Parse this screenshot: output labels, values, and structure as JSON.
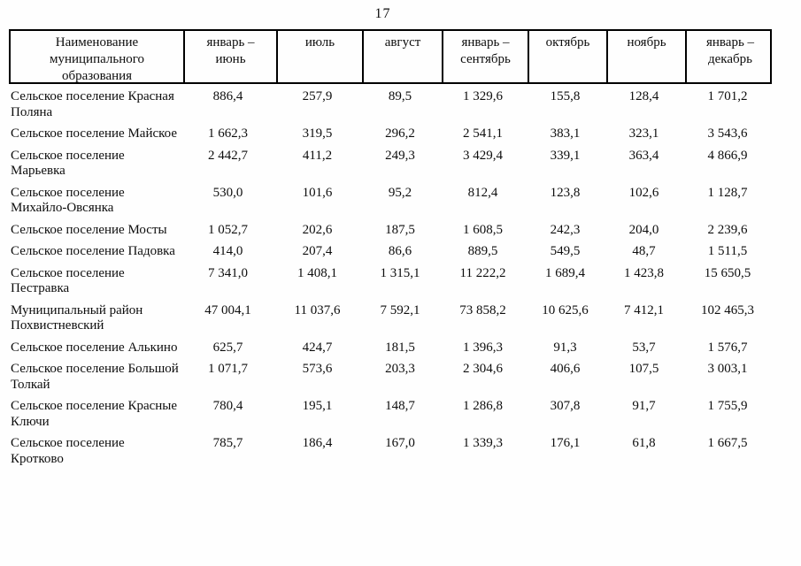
{
  "page": {
    "number": "17"
  },
  "table": {
    "header": [
      "Наименование муниципального образования",
      "январь – июнь",
      "июль",
      "август",
      "январь – сентябрь",
      "октябрь",
      "ноябрь",
      "январь – декабрь"
    ],
    "rows": [
      {
        "name": "Сельское поселение Красная Поляна",
        "values": [
          "886,4",
          "257,9",
          "89,5",
          "1 329,6",
          "155,8",
          "128,4",
          "1 701,2"
        ]
      },
      {
        "name": "Сельское поселение Майское",
        "values": [
          "1 662,3",
          "319,5",
          "296,2",
          "2 541,1",
          "383,1",
          "323,1",
          "3 543,6"
        ]
      },
      {
        "name": "Сельское поселение Марьевка",
        "values": [
          "2 442,7",
          "411,2",
          "249,3",
          "3 429,4",
          "339,1",
          "363,4",
          "4 866,9"
        ]
      },
      {
        "name": "Сельское поселение Михайло-Овсянка",
        "values": [
          "530,0",
          "101,6",
          "95,2",
          "812,4",
          "123,8",
          "102,6",
          "1 128,7"
        ]
      },
      {
        "name": "Сельское поселение Мосты",
        "values": [
          "1 052,7",
          "202,6",
          "187,5",
          "1 608,5",
          "242,3",
          "204,0",
          "2 239,6"
        ]
      },
      {
        "name": "Сельское поселение Падовка",
        "values": [
          "414,0",
          "207,4",
          "86,6",
          "889,5",
          "549,5",
          "48,7",
          "1 511,5"
        ]
      },
      {
        "name": "Сельское поселение Пестравка",
        "values": [
          "7 341,0",
          "1 408,1",
          "1 315,1",
          "11 222,2",
          "1 689,4",
          "1 423,8",
          "15 650,5"
        ]
      },
      {
        "name": "Муниципальный район Похвистневский",
        "values": [
          "47 004,1",
          "11 037,6",
          "7 592,1",
          "73 858,2",
          "10 625,6",
          "7 412,1",
          "102 465,3"
        ]
      },
      {
        "name": "Сельское поселение Алькино",
        "values": [
          "625,7",
          "424,7",
          "181,5",
          "1 396,3",
          "91,3",
          "53,7",
          "1 576,7"
        ]
      },
      {
        "name": "Сельское поселение Большой Толкай",
        "values": [
          "1 071,7",
          "573,6",
          "203,3",
          "2 304,6",
          "406,6",
          "107,5",
          "3 003,1"
        ]
      },
      {
        "name": "Сельское поселение Красные Ключи",
        "values": [
          "780,4",
          "195,1",
          "148,7",
          "1 286,8",
          "307,8",
          "91,7",
          "1 755,9"
        ]
      },
      {
        "name": "Сельское поселение Кротково",
        "values": [
          "785,7",
          "186,4",
          "167,0",
          "1 339,3",
          "176,1",
          "61,8",
          "1 667,5"
        ]
      }
    ]
  }
}
